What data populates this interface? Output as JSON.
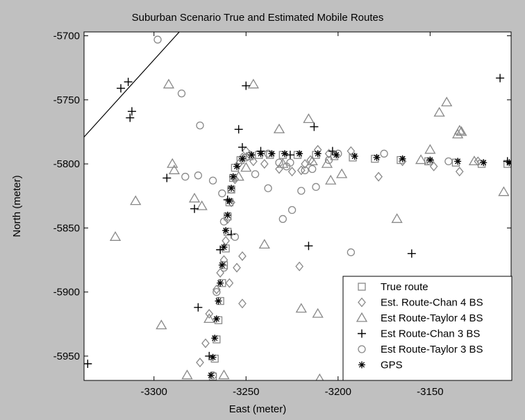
{
  "chart_data": {
    "type": "scatter",
    "title": "Suburban Scenario True and Estimated Mobile Routes",
    "xlabel": "East (meter)",
    "ylabel": "North (meter)",
    "xlim": [
      -3338,
      -3106
    ],
    "ylim": [
      -5969,
      -5697
    ],
    "xticks": [
      -3300,
      -3250,
      -3200,
      -3150
    ],
    "yticks": [
      -5700,
      -5750,
      -5800,
      -5850,
      -5900,
      -5950
    ],
    "grid": false,
    "legend_position": "bottom-right",
    "colors": {
      "background": "#c0c0c0",
      "plot": "#ffffff",
      "markers": "#888888",
      "axes": "#000000"
    },
    "reference_line": {
      "x": [
        -3338,
        -3285
      ],
      "y": [
        -5779,
        -5695
      ]
    },
    "series": [
      {
        "name": "True route",
        "marker": "square",
        "x": [
          -3268,
          -3267,
          -3266,
          -3265,
          -3264,
          -3263,
          -3262,
          -3261,
          -3260,
          -3260,
          -3259,
          -3258,
          -3257,
          -3256,
          -3253,
          -3248,
          -3243,
          -3237,
          -3230,
          -3222,
          -3212,
          -3202,
          -3192,
          -3180,
          -3166,
          -3151,
          -3136,
          -3122,
          -3108
        ],
        "y": [
          -5966,
          -5952,
          -5937,
          -5922,
          -5907,
          -5893,
          -5879,
          -5866,
          -5853,
          -5841,
          -5830,
          -5820,
          -5811,
          -5803,
          -5797,
          -5794,
          -5793,
          -5793,
          -5793,
          -5793,
          -5793,
          -5794,
          -5795,
          -5796,
          -5797,
          -5798,
          -5799,
          -5800,
          -5800
        ]
      },
      {
        "name": "Est. Route-Chan 4 BS",
        "marker": "diamond",
        "x": [
          -3275,
          -3272,
          -3270,
          -3266,
          -3264,
          -3262,
          -3261,
          -3260,
          -3258,
          -3256,
          -3254,
          -3252,
          -3250,
          -3248,
          -3246,
          -3240,
          -3232,
          -3225,
          -3220,
          -3218,
          -3215,
          -3211,
          -3205,
          -3193,
          -3178,
          -3165,
          -3148,
          -3134,
          -3124,
          -3252,
          -3259,
          -3221,
          -3255,
          -3252
        ],
        "y": [
          -5955,
          -5940,
          -5917,
          -5898,
          -5885,
          -5875,
          -5860,
          -5843,
          -5830,
          -5812,
          -5800,
          -5795,
          -5790,
          -5793,
          -5798,
          -5800,
          -5804,
          -5806,
          -5805,
          -5800,
          -5797,
          -5789,
          -5792,
          -5790,
          -5810,
          -5798,
          -5802,
          -5806,
          -5798,
          -5909,
          -5893,
          -5880,
          -5881,
          -5872
        ]
      },
      {
        "name": "Est Route-Taylor 4 BS",
        "marker": "triangle",
        "x": [
          -3321,
          -3310,
          -3296,
          -3292,
          -3290,
          -3282,
          -3278,
          -3274,
          -3270,
          -3262,
          -3254,
          -3246,
          -3240,
          -3232,
          -3220,
          -3216,
          -3211,
          -3210,
          -3206,
          -3204,
          -3198,
          -3168,
          -3155,
          -3150,
          -3145,
          -3141,
          -3135,
          -3134,
          -3133,
          -3126,
          -3110,
          -3103,
          -3289,
          -3230,
          -3214,
          -3250
        ],
        "y": [
          -5857,
          -5829,
          -5926,
          -5738,
          -5800,
          -5965,
          -5827,
          -5833,
          -5921,
          -5965,
          -5810,
          -5738,
          -5863,
          -5773,
          -5913,
          -5765,
          -5917,
          -5968,
          -5800,
          -5813,
          -5808,
          -5843,
          -5797,
          -5789,
          -5760,
          -5752,
          -5777,
          -5774,
          -5775,
          -5798,
          -5822,
          -5804,
          -5805,
          -5800,
          -5798,
          -5803
        ]
      },
      {
        "name": "Est Route-Chan 3 BS",
        "marker": "plus",
        "x": [
          -3336,
          -3318,
          -3314,
          -3313,
          -3312,
          -3293,
          -3278,
          -3276,
          -3264,
          -3260,
          -3254,
          -3252,
          -3250,
          -3242,
          -3226,
          -3216,
          -3213,
          -3203,
          -3189,
          -3160,
          -3112,
          -3108,
          -3258,
          -3270
        ],
        "y": [
          -5956,
          -5741,
          -5736,
          -5764,
          -5759,
          -5811,
          -5835,
          -5912,
          -5867,
          -5828,
          -5773,
          -5787,
          -5739,
          -5790,
          -5793,
          -5864,
          -5771,
          -5790,
          -5936,
          -5870,
          -5733,
          -5798,
          -5855,
          -5950
        ]
      },
      {
        "name": "Est Route-Taylor 3 BS",
        "marker": "circle",
        "x": [
          -3298,
          -3285,
          -3283,
          -3276,
          -3275,
          -3268,
          -3263,
          -3258,
          -3250,
          -3245,
          -3238,
          -3232,
          -3230,
          -3228,
          -3225,
          -3220,
          -3218,
          -3212,
          -3200,
          -3193,
          -3175,
          -3150,
          -3140,
          -3262,
          -3256,
          -3238,
          -3266,
          -3268,
          -3262,
          -3205,
          -3214,
          -3226
        ],
        "y": [
          -5703,
          -5745,
          -5810,
          -5809,
          -5770,
          -5813,
          -5823,
          -5820,
          -5795,
          -5808,
          -5819,
          -5799,
          -5843,
          -5802,
          -5836,
          -5821,
          -5805,
          -5818,
          -5792,
          -5869,
          -5792,
          -5798,
          -5798,
          -5845,
          -5857,
          -5792,
          -5900,
          -5965,
          -5881,
          -5797,
          -5804,
          -5799
        ]
      },
      {
        "name": "GPS",
        "marker": "star",
        "x": [
          -3269,
          -3268,
          -3267,
          -3266,
          -3265,
          -3264,
          -3263,
          -3262,
          -3261,
          -3260,
          -3259,
          -3258,
          -3257,
          -3255,
          -3252,
          -3247,
          -3242,
          -3236,
          -3229,
          -3221,
          -3211,
          -3201,
          -3191,
          -3179,
          -3165,
          -3150,
          -3135,
          -3121,
          -3107
        ],
        "y": [
          -5965,
          -5951,
          -5936,
          -5921,
          -5907,
          -5893,
          -5879,
          -5865,
          -5852,
          -5840,
          -5829,
          -5819,
          -5810,
          -5802,
          -5796,
          -5793,
          -5792,
          -5792,
          -5792,
          -5792,
          -5792,
          -5793,
          -5794,
          -5795,
          -5796,
          -5797,
          -5798,
          -5799,
          -5799
        ]
      }
    ]
  }
}
